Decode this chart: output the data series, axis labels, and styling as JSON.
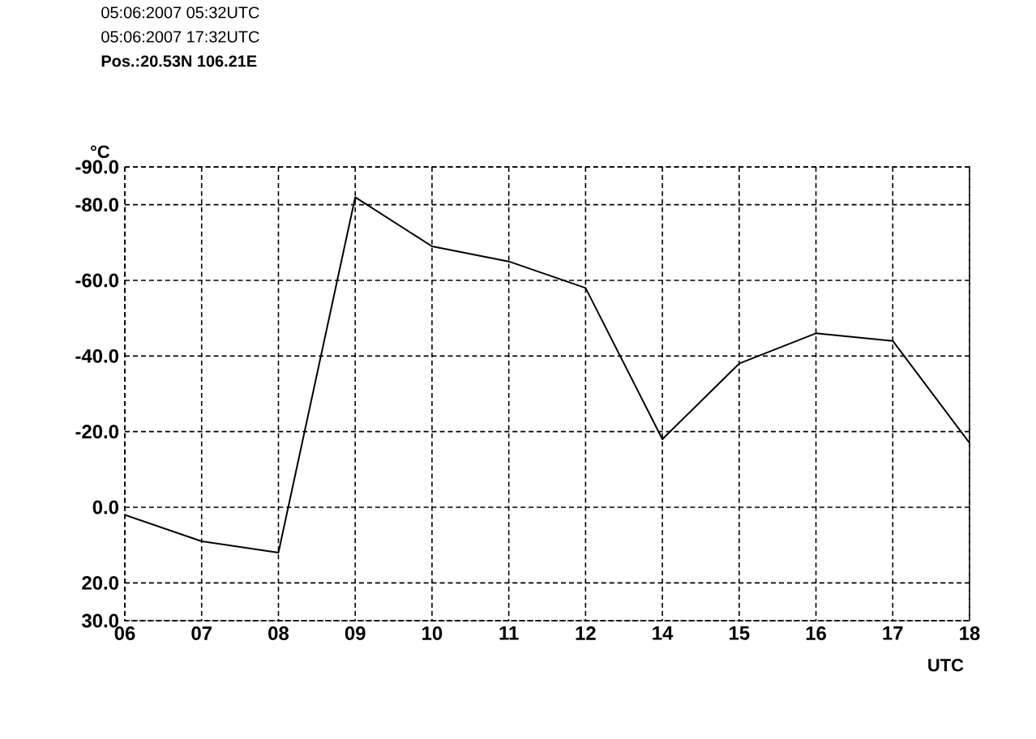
{
  "chart_data": {
    "type": "line",
    "title": "05:06:2007 05:32UTC",
    "subtitle": "05:06:2007 17:32UTC",
    "annotations": [
      "Pos.:20.53N 106.21E"
    ],
    "xlabel": "UTC",
    "ylabel": "°C",
    "categories": [
      "06",
      "07",
      "08",
      "09",
      "10",
      "11",
      "12",
      "14",
      "15",
      "16",
      "17",
      "18"
    ],
    "series": [
      {
        "color": "#000000",
        "values": [
          2,
          9,
          12,
          -82,
          -69,
          -65,
          -58,
          -18,
          -38,
          -46,
          -44,
          -17
        ]
      }
    ],
    "ylim": [
      30,
      -90
    ],
    "yticks": [
      {
        "value": -90,
        "label": "-90.0"
      },
      {
        "value": -80,
        "label": "-80.0"
      },
      {
        "value": -60,
        "label": "-60.0"
      },
      {
        "value": -40,
        "label": "-40.0"
      },
      {
        "value": -20,
        "label": "-20.0"
      },
      {
        "value": 0,
        "label": "0.0"
      },
      {
        "value": 20,
        "label": "20.0"
      },
      {
        "value": 30,
        "label": "30.0"
      }
    ],
    "grid": true,
    "marker": "none",
    "line_style": "solid"
  }
}
